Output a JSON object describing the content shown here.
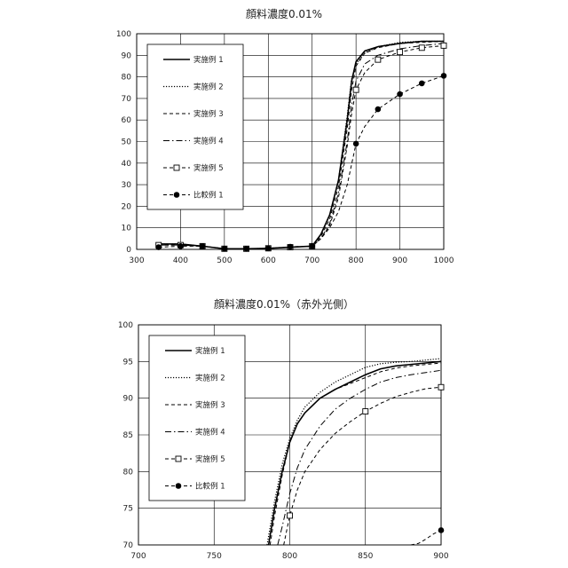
{
  "series_styles": [
    {
      "dash": "",
      "width": 1.6,
      "marker": "none"
    },
    {
      "dash": "1.2,1.8",
      "width": 1.2,
      "marker": "none"
    },
    {
      "dash": "4,3",
      "width": 1.0,
      "marker": "none"
    },
    {
      "dash": "7,3,1.5,3",
      "width": 1.0,
      "marker": "none"
    },
    {
      "dash": "4,3",
      "width": 1.0,
      "marker": "square-open"
    },
    {
      "dash": "4,3",
      "width": 1.0,
      "marker": "circle-filled"
    }
  ],
  "colors": {
    "line": "#000000",
    "grid": "#000000",
    "frame": "#000000"
  },
  "chart_data": [
    {
      "type": "line",
      "title": "顔料濃度0.01%",
      "xlabel": "",
      "ylabel": "",
      "xlim": [
        300,
        1000
      ],
      "ylim": [
        0,
        100
      ],
      "xticks": [
        "300",
        "400",
        "500",
        "600",
        "700",
        "800",
        "900",
        "1000"
      ],
      "yticks": [
        "0",
        "10",
        "20",
        "30",
        "40",
        "50",
        "60",
        "70",
        "80",
        "90",
        "100"
      ],
      "grid": true,
      "legend": "upper-left",
      "series": [
        {
          "name": "実施例 1",
          "x": [
            350,
            400,
            450,
            500,
            550,
            600,
            650,
            700,
            720,
            740,
            760,
            780,
            790,
            800,
            820,
            850,
            900,
            950,
            1000
          ],
          "y": [
            2.5,
            2.5,
            1.5,
            0.3,
            0.3,
            0.5,
            1.0,
            1.5,
            7,
            16,
            32,
            60,
            78,
            87,
            92,
            94,
            95.5,
            96.5,
            96.5
          ]
        },
        {
          "name": "実施例 2",
          "x": [
            350,
            400,
            450,
            500,
            550,
            600,
            650,
            700,
            720,
            740,
            760,
            780,
            790,
            800,
            820,
            850,
            900,
            950,
            1000
          ],
          "y": [
            2.5,
            2.5,
            1.5,
            0.3,
            0.3,
            0.5,
            1.0,
            1.5,
            7,
            16,
            32,
            62,
            79,
            86,
            91,
            94,
            96,
            96.5,
            96.5
          ]
        },
        {
          "name": "実施例 3",
          "x": [
            350,
            400,
            450,
            500,
            550,
            600,
            650,
            700,
            720,
            740,
            760,
            780,
            790,
            800,
            820,
            850,
            900,
            950,
            1000
          ],
          "y": [
            2.0,
            2.0,
            1.5,
            0.3,
            0.3,
            0.5,
            1.0,
            1.5,
            6,
            14,
            29,
            56,
            74,
            85,
            91,
            93.5,
            95.5,
            96,
            96.5
          ]
        },
        {
          "name": "実施例 4",
          "x": [
            350,
            400,
            450,
            500,
            550,
            600,
            650,
            700,
            720,
            740,
            760,
            780,
            790,
            800,
            820,
            850,
            900,
            950,
            1000
          ],
          "y": [
            2.0,
            2.0,
            1.5,
            0.3,
            0.3,
            0.5,
            1.0,
            1.5,
            5,
            12,
            26,
            50,
            67,
            78,
            86,
            90,
            93,
            94.5,
            95.5
          ]
        },
        {
          "name": "実施例 5",
          "x": [
            350,
            400,
            450,
            500,
            550,
            600,
            650,
            700,
            720,
            740,
            760,
            780,
            790,
            800,
            820,
            850,
            900,
            950,
            1000
          ],
          "y": [
            2.0,
            2.0,
            1.5,
            0.3,
            0.3,
            0.5,
            1.0,
            1.5,
            5,
            11,
            24,
            48,
            63,
            74,
            82,
            88,
            91.5,
            93.5,
            94.5
          ]
        },
        {
          "name": "比較例 1",
          "x": [
            350,
            400,
            450,
            500,
            550,
            600,
            650,
            700,
            720,
            740,
            760,
            780,
            800,
            820,
            850,
            900,
            950,
            1000
          ],
          "y": [
            1.0,
            1.5,
            1.5,
            0.3,
            0.3,
            0.5,
            1.2,
            1.5,
            5,
            10,
            17.5,
            30,
            49,
            57,
            65,
            72,
            77,
            80.5
          ]
        }
      ]
    },
    {
      "type": "line",
      "title": "顔料濃度0.01%（赤外光側）",
      "xlabel": "",
      "ylabel": "",
      "xlim": [
        700,
        900
      ],
      "ylim": [
        70,
        100
      ],
      "xticks": [
        "700",
        "750",
        "800",
        "850",
        "900"
      ],
      "yticks": [
        "70",
        "75",
        "80",
        "85",
        "90",
        "95",
        "100"
      ],
      "grid": true,
      "legend": "upper-left",
      "series": [
        {
          "name": "実施例 1",
          "x": [
            786,
            790,
            795,
            800,
            805,
            810,
            820,
            830,
            840,
            850,
            860,
            870,
            880,
            890,
            900
          ],
          "y": [
            70,
            75,
            80,
            84,
            86.5,
            88,
            90,
            91.2,
            92.2,
            93.2,
            94,
            94.4,
            94.6,
            94.8,
            95
          ]
        },
        {
          "name": "実施例 2",
          "x": [
            785,
            790,
            795,
            800,
            805,
            810,
            820,
            830,
            840,
            850,
            860,
            870,
            880,
            890,
            900
          ],
          "y": [
            70,
            76,
            81,
            84.5,
            87,
            88.8,
            90.8,
            92.2,
            93.2,
            94.2,
            94.7,
            94.9,
            95,
            95.2,
            95.4
          ]
        },
        {
          "name": "実施例 3",
          "x": [
            787,
            790,
            795,
            800,
            805,
            810,
            820,
            830,
            840,
            850,
            860,
            870,
            880,
            890,
            900
          ],
          "y": [
            70,
            74,
            79.5,
            84,
            86.5,
            88,
            90,
            91.2,
            92,
            92.8,
            93.6,
            94.1,
            94.4,
            94.6,
            94.8
          ]
        },
        {
          "name": "実施例 4",
          "x": [
            792,
            795,
            800,
            805,
            810,
            820,
            830,
            840,
            850,
            860,
            870,
            880,
            890,
            900
          ],
          "y": [
            70,
            72.5,
            77,
            80.5,
            83,
            86.2,
            88.5,
            90,
            91.2,
            92.2,
            92.8,
            93.2,
            93.5,
            93.8
          ]
        },
        {
          "name": "実施例 5",
          "x": [
            796,
            800,
            805,
            810,
            820,
            830,
            840,
            850,
            860,
            870,
            880,
            890,
            900
          ],
          "y": [
            70,
            74,
            77.5,
            80,
            83,
            85.2,
            86.8,
            88.2,
            89.3,
            90.2,
            90.8,
            91.3,
            91.5
          ]
        },
        {
          "name": "比較例 1",
          "x": [
            880,
            885,
            890,
            895,
            900
          ],
          "y": [
            70,
            70.2,
            70.8,
            71.5,
            72
          ]
        }
      ],
      "markers": {
        "実施例 5": [
          [
            800,
            74
          ],
          [
            850,
            88.2
          ],
          [
            900,
            91.5
          ]
        ],
        "比較例 1": [
          [
            900,
            72
          ]
        ]
      }
    }
  ]
}
